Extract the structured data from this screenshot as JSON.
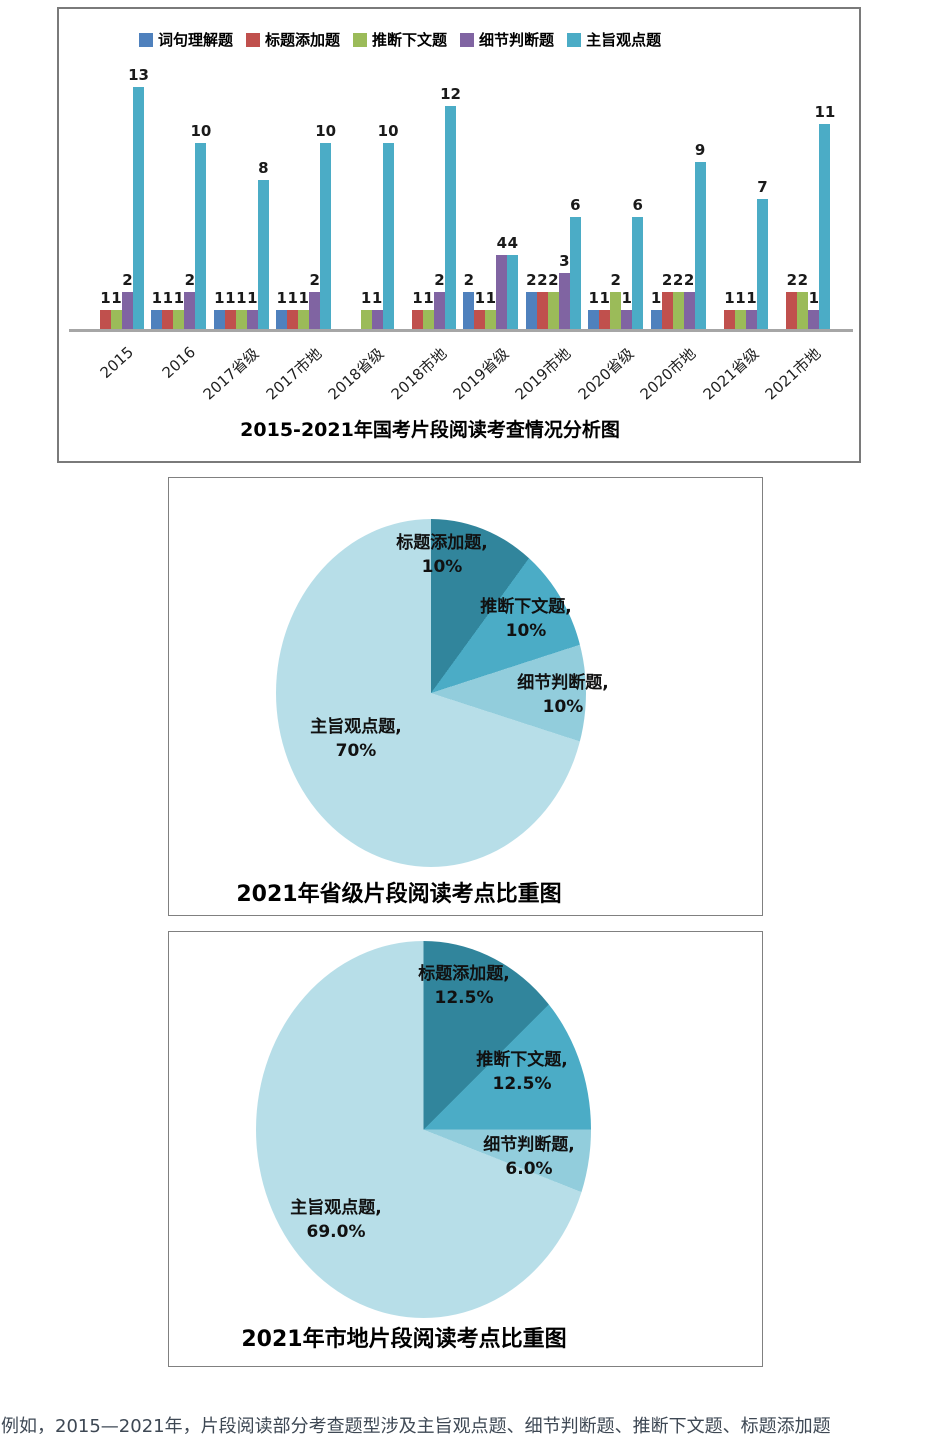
{
  "chart_data": [
    {
      "type": "bar",
      "title": "2015-2021年国考片段阅读考查情况分析图",
      "categories": [
        "2015",
        "2016",
        "2017省级",
        "2017市地",
        "2018省级",
        "2018市地",
        "2019省级",
        "2019市地",
        "2020省级",
        "2020市地",
        "2021省级",
        "2021市地"
      ],
      "series": [
        {
          "name": "词句理解题",
          "color": "#4F81BD",
          "values": [
            0,
            1,
            1,
            1,
            0,
            0,
            2,
            2,
            1,
            1,
            0,
            0
          ]
        },
        {
          "name": "标题添加题",
          "color": "#C0504D",
          "values": [
            1,
            1,
            1,
            1,
            0,
            1,
            1,
            2,
            1,
            2,
            1,
            2
          ]
        },
        {
          "name": "推断下文题",
          "color": "#9BBB59",
          "values": [
            1,
            1,
            1,
            1,
            1,
            1,
            1,
            2,
            2,
            2,
            1,
            2
          ]
        },
        {
          "name": "细节判断题",
          "color": "#8064A2",
          "values": [
            2,
            2,
            1,
            2,
            1,
            2,
            4,
            3,
            1,
            2,
            1,
            1
          ]
        },
        {
          "name": "主旨观点题",
          "color": "#4BACC6",
          "values": [
            13,
            10,
            8,
            10,
            10,
            12,
            4,
            6,
            6,
            9,
            7,
            11
          ]
        }
      ],
      "ylim": [
        0,
        14
      ],
      "grid": false,
      "data_labels": true,
      "legend_position": "top"
    },
    {
      "type": "pie",
      "title": "2021年省级片段阅读考点比重图",
      "start_angle_deg": 0,
      "direction": "clockwise",
      "slices": [
        {
          "label": "标题添加题",
          "pct": 10,
          "display": "10%",
          "color": "#31859C"
        },
        {
          "label": "推断下文题",
          "pct": 10,
          "display": "10%",
          "color": "#4BACC6"
        },
        {
          "label": "细节判断题",
          "pct": 10,
          "display": "10%",
          "color": "#92CDDC"
        },
        {
          "label": "主旨观点题",
          "pct": 70,
          "display": "70%",
          "color": "#B7DEE8"
        }
      ]
    },
    {
      "type": "pie",
      "title": "2021年市地片段阅读考点比重图",
      "start_angle_deg": 0,
      "direction": "clockwise",
      "slices": [
        {
          "label": "标题添加题",
          "pct": 12.5,
          "display": "12.5%",
          "color": "#31859C"
        },
        {
          "label": "推断下文题",
          "pct": 12.5,
          "display": "12.5%",
          "color": "#4BACC6"
        },
        {
          "label": "细节判断题",
          "pct": 6.0,
          "display": "6.0%",
          "color": "#92CDDC"
        },
        {
          "label": "主旨观点题",
          "pct": 69.0,
          "display": "69.0%",
          "color": "#B7DEE8"
        }
      ]
    }
  ],
  "footer": {
    "text": "例如，2015—2021年，片段阅读部分考查题型涉及主旨观点题、细节判断题、推断下文题、标题添加题"
  }
}
